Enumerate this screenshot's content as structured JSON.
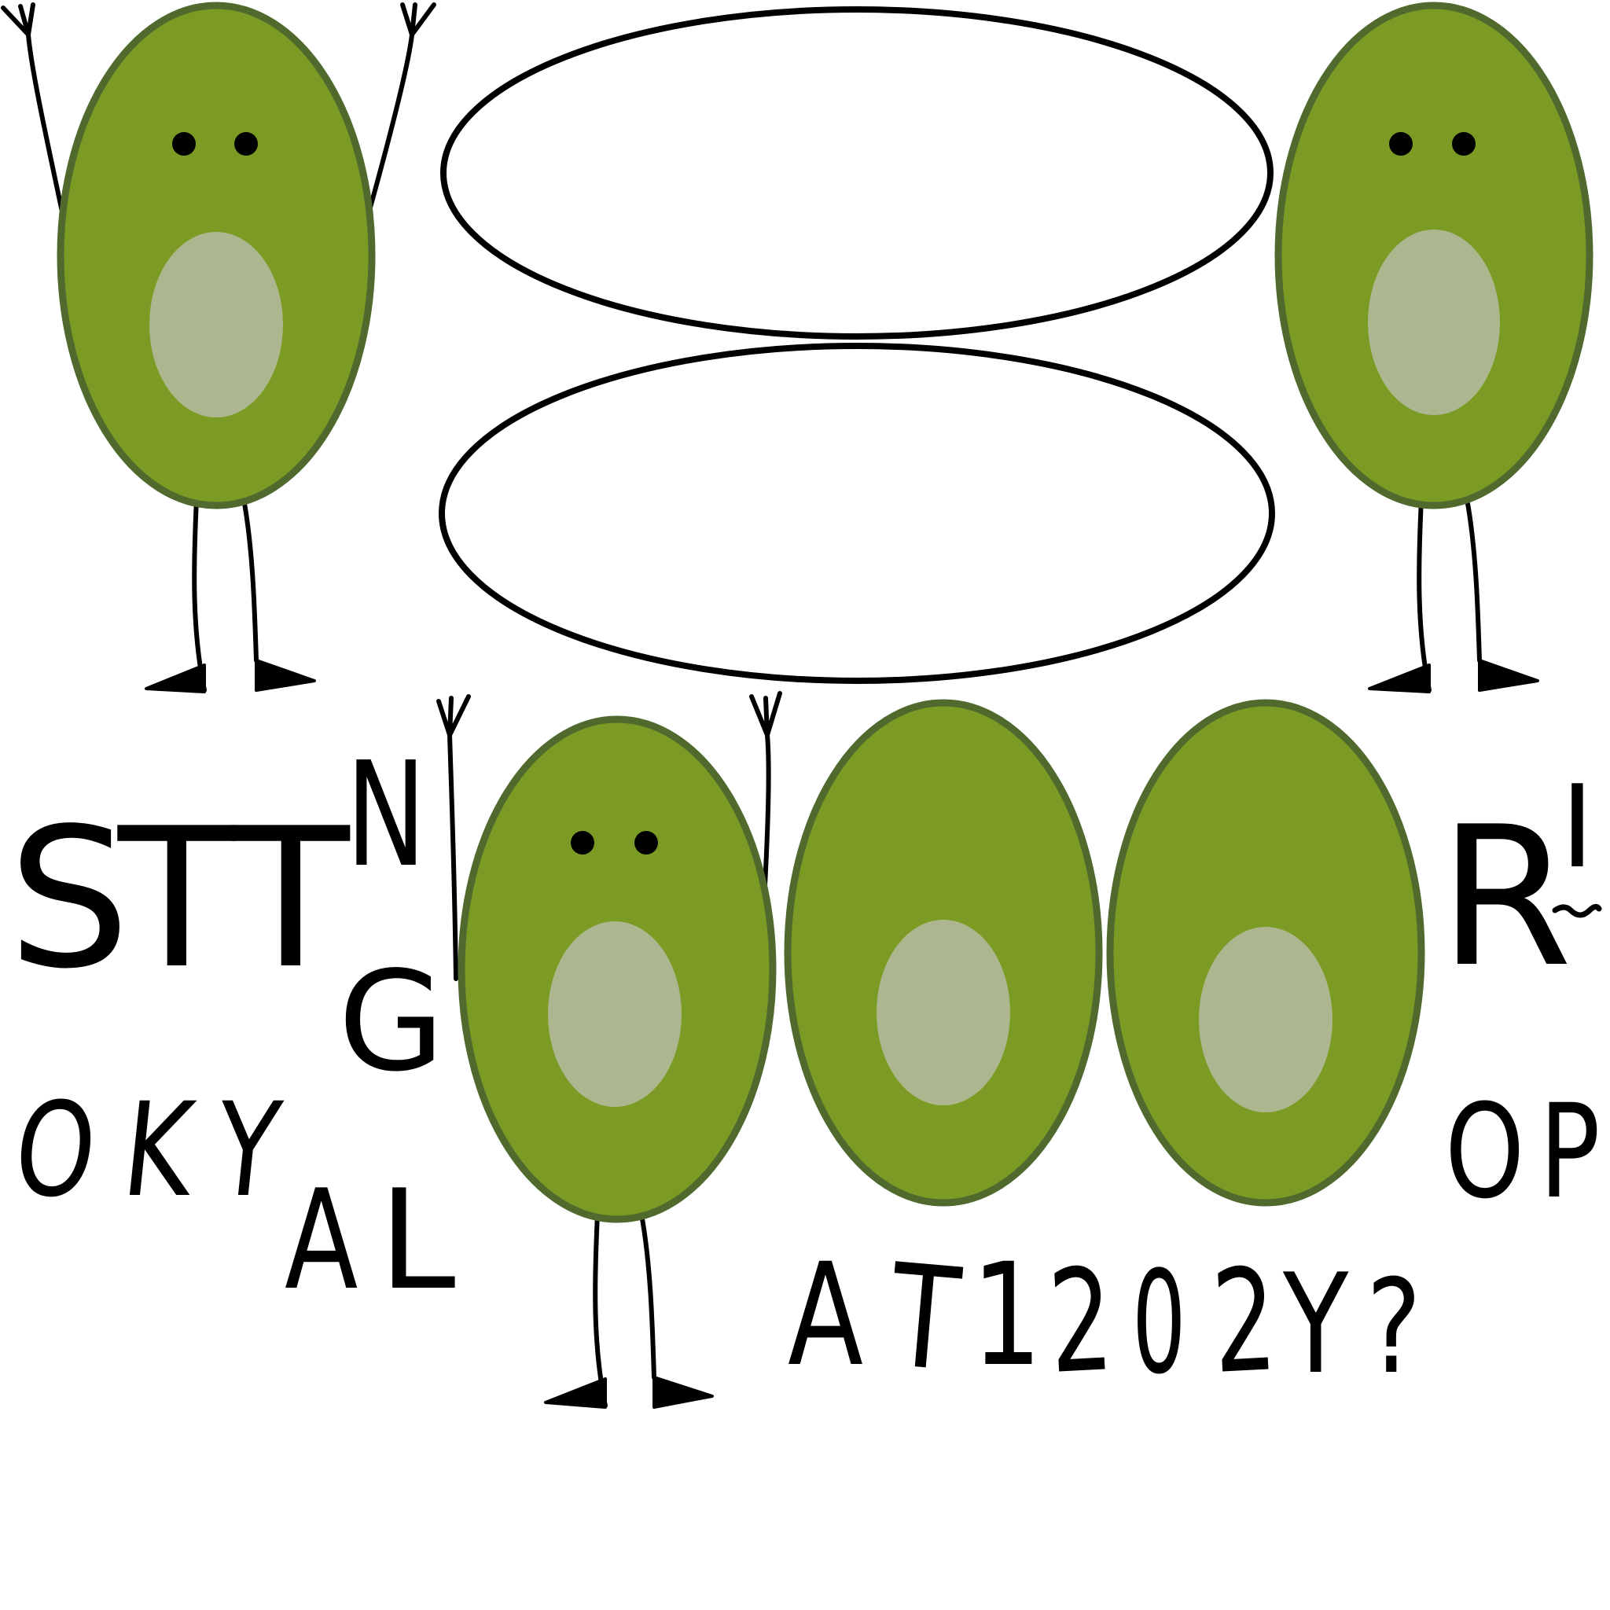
{
  "scene": {
    "avocado_color": "#7b9b24",
    "avocado_outline": "#506a2e",
    "pit_color": "#adb78f"
  },
  "letters": {
    "s": "S",
    "t1": "T",
    "t2": "T",
    "n": "N",
    "g": "G",
    "r": "R",
    "i": "I",
    "o_left": "O",
    "k": "K",
    "y_left": "Y",
    "a_left": "A",
    "l": "L",
    "a_right": "A",
    "t_right": "T",
    "one": "1",
    "two_a": "2",
    "zero": "0",
    "two_b": "2",
    "y_right": "Y",
    "question": "?",
    "o_right": "O",
    "p": "P"
  }
}
